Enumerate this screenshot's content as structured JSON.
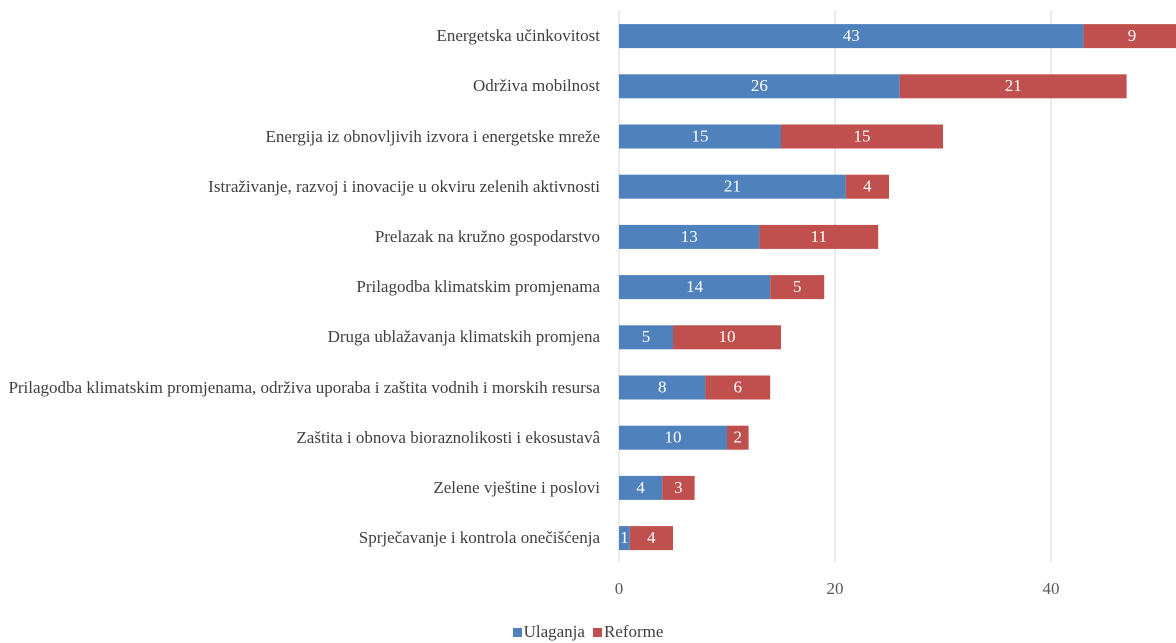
{
  "chart_data": {
    "type": "stacked_barh",
    "categories": [
      "Energetska učinkovitost",
      "Održiva mobilnost",
      "Energija iz obnovljivih izvora i energetske mreže",
      "Istraživanje, razvoj i inovacije u okviru zelenih aktivnosti",
      "Prelazak na kružno gospodarstvo",
      "Prilagodba klimatskim promjenama",
      "Druga ublažavanja klimatskih promjena",
      "Prilagodba klimatskim promjenama, održiva uporaba i zaštita vodnih i morskih resursa",
      "Zaštita i obnova bioraznolikosti i ekosustavâ",
      "Zelene vještine i poslovi",
      "Sprječavanje i kontrola onečišćenja"
    ],
    "series": [
      {
        "name": "Ulaganja",
        "color": "#4f81bd",
        "values": [
          43,
          26,
          15,
          21,
          13,
          14,
          5,
          8,
          10,
          4,
          1
        ]
      },
      {
        "name": "Reforme",
        "color": "#c0504d",
        "values": [
          9,
          21,
          15,
          4,
          11,
          5,
          10,
          6,
          2,
          3,
          4
        ]
      }
    ],
    "xlim": [
      0,
      60
    ],
    "xticks": [
      0,
      20,
      40
    ],
    "grid": true,
    "legend": "bottom"
  }
}
